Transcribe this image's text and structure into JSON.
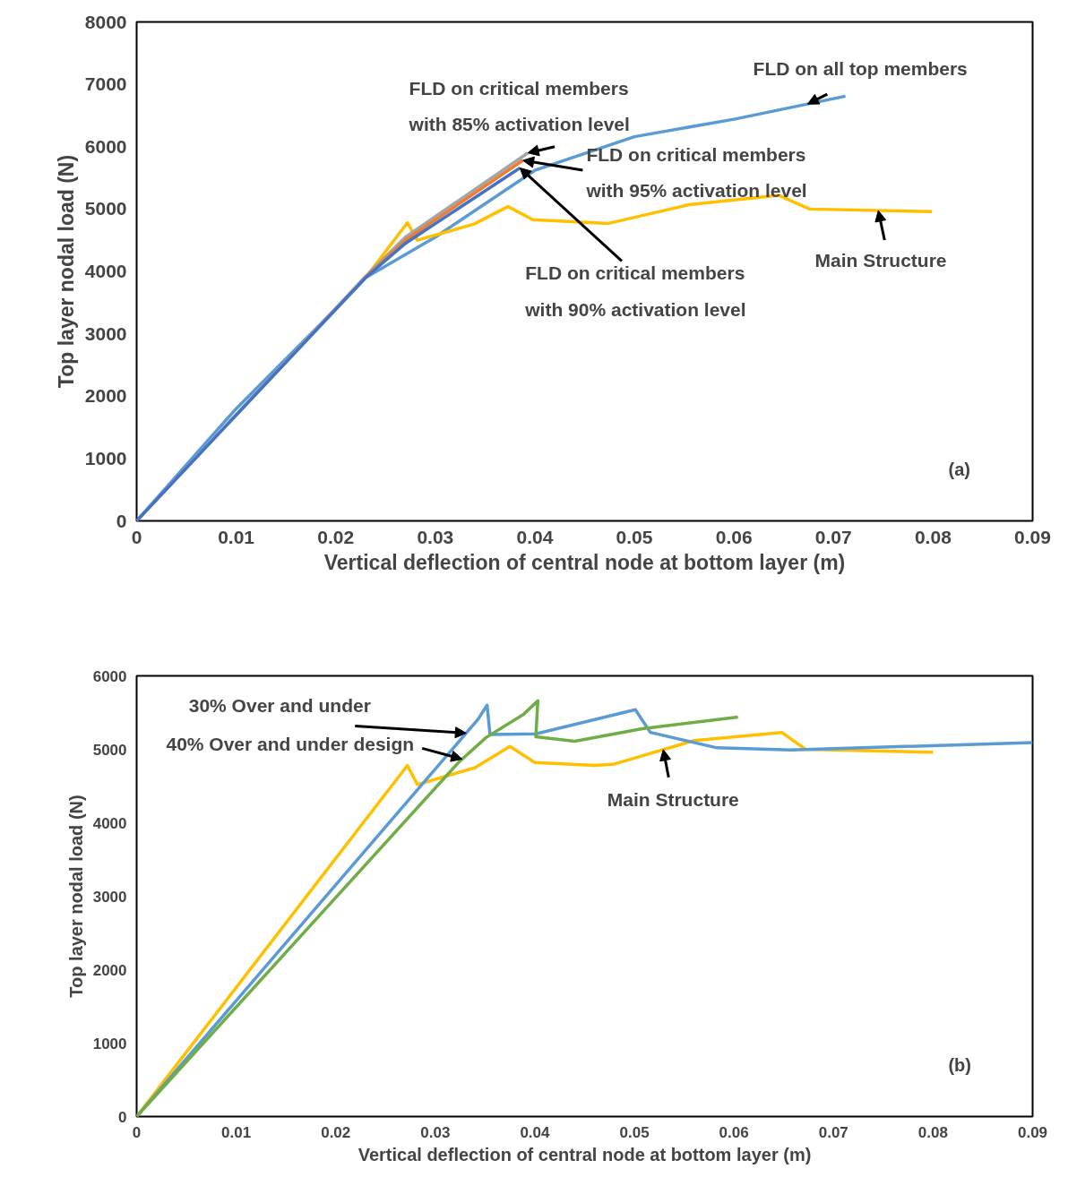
{
  "chart_data": [
    {
      "type": "line",
      "xlabel": "Vertical deflection of central node at bottom layer (m)",
      "ylabel": "Top layer nodal load (N)",
      "xlim": [
        0,
        0.09
      ],
      "ylim": [
        0,
        8000
      ],
      "xticks": [
        0,
        0.01,
        0.02,
        0.03,
        0.04,
        0.05,
        0.06,
        0.07,
        0.08,
        0.09
      ],
      "yticks": [
        0,
        1000,
        2000,
        3000,
        4000,
        5000,
        6000,
        7000,
        8000
      ],
      "grid": false,
      "marker": "none",
      "line_style": "solid",
      "series": [
        {
          "color": "#5b9bd5",
          "x": [
            0,
            0.01,
            0.02,
            0.023,
            0.03,
            0.04,
            0.05,
            0.06,
            0.0712
          ],
          "values": [
            0,
            1800,
            3400,
            3900,
            4550,
            5620,
            6160,
            6440,
            6810
          ]
        },
        {
          "color": "#ffc000",
          "x": [
            0.023,
            0.0272,
            0.0282,
            0.0339,
            0.0373,
            0.0398,
            0.0474,
            0.0555,
            0.0645,
            0.0676,
            0.0799
          ],
          "values": [
            3900,
            4780,
            4500,
            4760,
            5040,
            4830,
            4770,
            5070,
            5220,
            5000,
            4960
          ]
        },
        {
          "color": "#a5a5a5",
          "x": [
            0,
            0.023,
            0.027,
            0.0393
          ],
          "values": [
            0,
            3920,
            4550,
            5900
          ]
        },
        {
          "color": "#ed7d31",
          "x": [
            0.023,
            0.027,
            0.0388
          ],
          "values": [
            3910,
            4500,
            5780
          ]
        },
        {
          "color": "#4472c4",
          "x": [
            0,
            0.023,
            0.027,
            0.0385
          ],
          "values": [
            0,
            3900,
            4450,
            5660
          ]
        }
      ],
      "annotations": [
        {
          "text": "FLD on all top members",
          "x": 0.0674,
          "y": 6684
        },
        {
          "text": "FLD on critical members\nwith 85% activation level",
          "x": 0.0393,
          "y": 5900
        },
        {
          "text": "FLD on critical members\nwith 95% activation level",
          "x": 0.0388,
          "y": 5780
        },
        {
          "text": "FLD on critical members\nwith 90% activation level",
          "x": 0.0385,
          "y": 5660
        },
        {
          "text": "Main Structure",
          "x": 0.0745,
          "y": 4977
        },
        "(a)"
      ]
    },
    {
      "type": "line",
      "xlabel": "Vertical deflection of central node at bottom layer (m)",
      "ylabel": "Top layer nodal load (N)",
      "xlim": [
        0,
        0.09
      ],
      "ylim": [
        0,
        6000
      ],
      "xticks": [
        0,
        0.01,
        0.02,
        0.03,
        0.04,
        0.05,
        0.06,
        0.07,
        0.08,
        0.09
      ],
      "yticks": [
        0,
        1000,
        2000,
        3000,
        4000,
        5000,
        6000
      ],
      "grid": false,
      "marker": "none",
      "line_style": "solid",
      "series": [
        {
          "color": "#ffc000",
          "x": [
            0,
            0.0272,
            0.0282,
            0.034,
            0.0375,
            0.04,
            0.046,
            0.048,
            0.056,
            0.0648,
            0.0672,
            0.08
          ],
          "values": [
            0,
            4780,
            4520,
            4750,
            5040,
            4820,
            4780,
            4800,
            5120,
            5230,
            5000,
            4960
          ]
        },
        {
          "color": "#5b9bd5",
          "x": [
            0,
            0.0343,
            0.0352,
            0.0355,
            0.0401,
            0.0501,
            0.0516,
            0.0583,
            0.0657,
            0.075,
            0.09
          ],
          "values": [
            0,
            5410,
            5600,
            5200,
            5210,
            5540,
            5230,
            5020,
            4990,
            5030,
            5090
          ]
        },
        {
          "color": "#70ad47",
          "x": [
            0,
            0.0324,
            0.0351,
            0.0389,
            0.0403,
            0.0401,
            0.044,
            0.0508,
            0.0604
          ],
          "values": [
            0,
            4830,
            5160,
            5480,
            5660,
            5170,
            5110,
            5280,
            5440
          ]
        }
      ],
      "annotations": [
        {
          "text": "30% Over and under",
          "x": 0.0331,
          "y": 5220
        },
        {
          "text": "40% Over and under design",
          "x": 0.0327,
          "y": 4867
        },
        {
          "text": "Main Structure",
          "x": 0.0529,
          "y": 4996
        },
        "(b)"
      ]
    }
  ]
}
